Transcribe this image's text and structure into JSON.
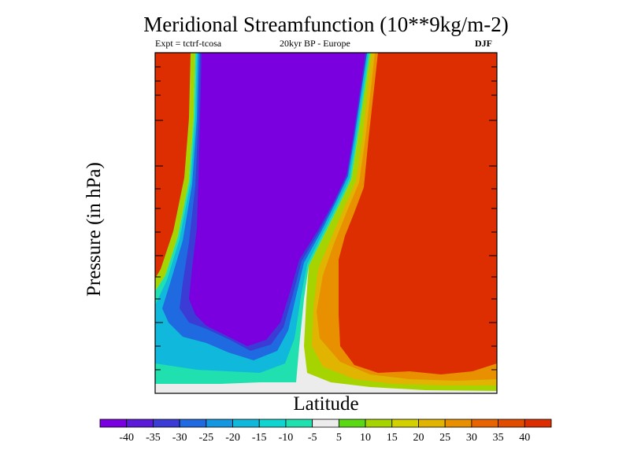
{
  "chart_data": {
    "type": "heatmap",
    "title": "Meridional Streamfunction (10**9kg/m-2)",
    "experiment": "Expt = tctrf-tcosa",
    "subtitle": "20kyr BP - Europe",
    "season": "DJF",
    "xlabel": "Latitude",
    "ylabel": "Pressure (in hPa)",
    "x_tick_labels": [],
    "y_tick_labels": [],
    "colorbar": {
      "ticks": [
        "-40",
        "-35",
        "-30",
        "-25",
        "-20",
        "-15",
        "-10",
        "-5",
        "5",
        "10",
        "15",
        "20",
        "25",
        "30",
        "35",
        "40"
      ],
      "bins": [
        {
          "range": "< -40",
          "color": "#7a00e0"
        },
        {
          "range": "-40 to -35",
          "color": "#5a1ad8"
        },
        {
          "range": "-35 to -30",
          "color": "#3b3bd6"
        },
        {
          "range": "-30 to -25",
          "color": "#1f6ae0"
        },
        {
          "range": "-25 to -20",
          "color": "#1496e0"
        },
        {
          "range": "-20 to -15",
          "color": "#10b8dc"
        },
        {
          "range": "-15 to -10",
          "color": "#10d4d0"
        },
        {
          "range": "-10 to -5",
          "color": "#20e0b0"
        },
        {
          "range": "-5 to 5",
          "color": "#ececec"
        },
        {
          "range": "5 to 10",
          "color": "#5ad814"
        },
        {
          "range": "10 to 15",
          "color": "#a6d400"
        },
        {
          "range": "15 to 20",
          "color": "#d2d000"
        },
        {
          "range": "20 to 25",
          "color": "#e0b400"
        },
        {
          "range": "25 to 30",
          "color": "#e89000"
        },
        {
          "range": "30 to 35",
          "color": "#e86400"
        },
        {
          "range": "35 to 40",
          "color": "#e04c00"
        },
        {
          "range": "> 40",
          "color": "#dc2e00"
        }
      ]
    },
    "regions": [
      {
        "name": "northern-positive-cell",
        "sign": "positive",
        "value_class": "> 40"
      },
      {
        "name": "central-negative-cell",
        "sign": "negative",
        "value_class": "< -40"
      },
      {
        "name": "southern-positive-cell",
        "sign": "positive",
        "value_class": "> 40"
      },
      {
        "name": "near-zero-band",
        "sign": "zero",
        "value_class": "-5 to 5"
      }
    ]
  }
}
